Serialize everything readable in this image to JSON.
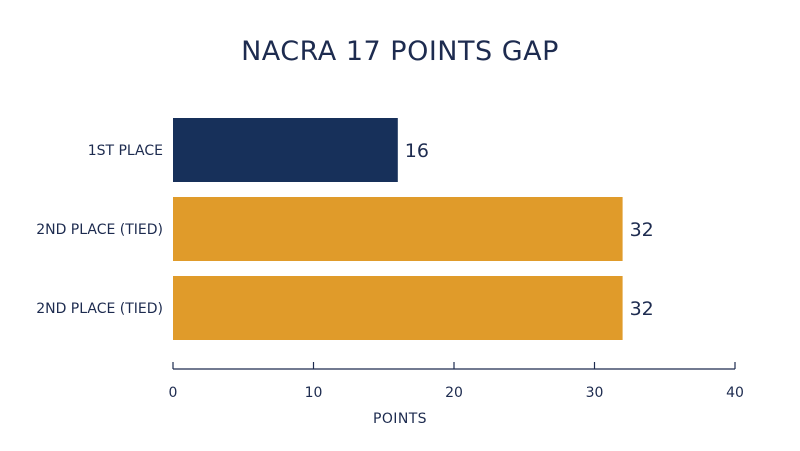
{
  "chart_data": {
    "type": "bar",
    "orientation": "horizontal",
    "title": "NACRA 17 POINTS GAP",
    "xlabel": "POINTS",
    "ylabel": "",
    "categories": [
      "1ST PLACE",
      "2ND PLACE (TIED)",
      "2ND PLACE (TIED)"
    ],
    "values": [
      16,
      32,
      32
    ],
    "value_labels": [
      "16",
      "32",
      "32"
    ],
    "bar_colors": [
      "#17305a",
      "#e09b2a",
      "#e09b2a"
    ],
    "xlim": [
      0,
      40
    ],
    "xticks": [
      0,
      10,
      20,
      30,
      40
    ],
    "xtick_labels": [
      "0",
      "10",
      "20",
      "30",
      "40"
    ],
    "grid": false,
    "legend": "none"
  },
  "colors": {
    "text": "#1d2b4f",
    "axis": "#1d2b4f"
  }
}
